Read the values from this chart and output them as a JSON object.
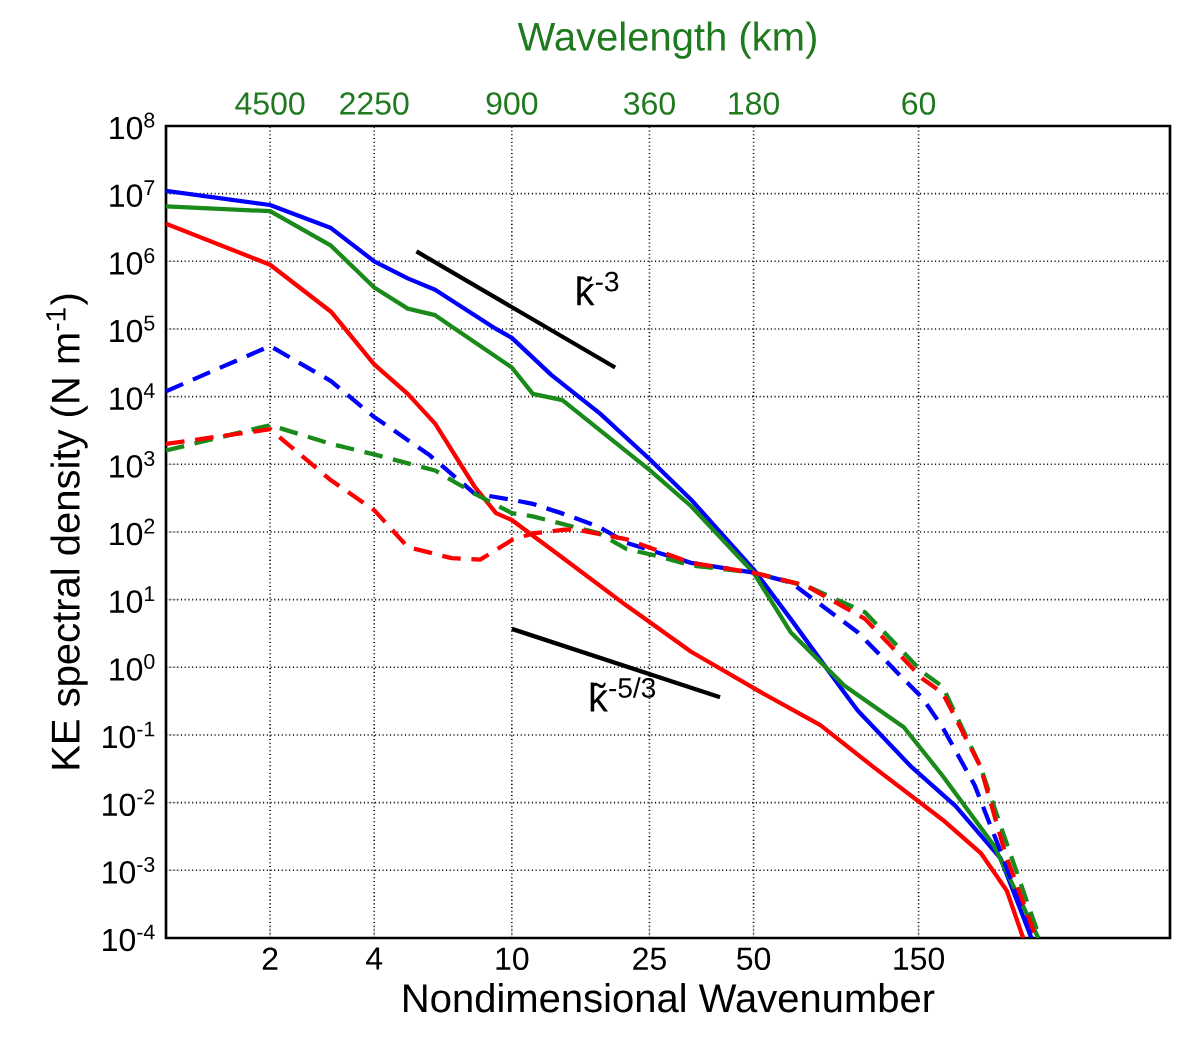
{
  "chart_data": {
    "type": "line",
    "xlabel": "Nondimensional Wavenumber",
    "ylabel": "KE spectral density (N m$^{-1}$)",
    "log": "xy",
    "grid": true,
    "marker": "none",
    "xlim": [
      1,
      800
    ],
    "xticks": [
      2,
      4,
      10,
      25,
      50,
      150
    ],
    "ylim": [
      0.0001,
      100000000
    ],
    "yticks": [
      {
        "value": 100000000,
        "label": "10$^{8}$"
      },
      {
        "value": 10000000,
        "label": "10$^{7}$"
      },
      {
        "value": 1000000,
        "label": "10$^{6}$"
      },
      {
        "value": 100000,
        "label": "10$^{5}$"
      },
      {
        "value": 10000,
        "label": "10$^{4}$"
      },
      {
        "value": 1000,
        "label": "10$^{3}$"
      },
      {
        "value": 100,
        "label": "10$^{2}$"
      },
      {
        "value": 10,
        "label": "10$^{1}$"
      },
      {
        "value": 1,
        "label": "10$^{0}$"
      },
      {
        "value": 0.1,
        "label": "10$^{-1}$"
      },
      {
        "value": 0.01,
        "label": "10$^{-2}$"
      },
      {
        "value": 0.001,
        "label": "10$^{-3}$"
      },
      {
        "value": 0.0001,
        "label": "10$^{-4}$"
      }
    ],
    "series": [
      {
        "color": "#0000ff",
        "line_style": "solid",
        "x": [
          1,
          2,
          3,
          4,
          5,
          6,
          9,
          10,
          13,
          18,
          25,
          33,
          50,
          64,
          91,
          100,
          142,
          192,
          259,
          318
        ],
        "values": [
          11000000,
          6800000,
          3100000,
          1000000,
          560000,
          380000,
          100000,
          74000,
          21000,
          5600,
          1200,
          300,
          28,
          5.2,
          0.44,
          0.23,
          0.035,
          0.0089,
          0.0015,
          0.0001
        ]
      },
      {
        "color": "#1a8a1a",
        "line_style": "solid",
        "x": [
          1,
          2,
          3,
          4,
          5,
          6,
          10,
          11.5,
          14,
          25,
          33,
          50,
          64,
          91,
          136,
          176,
          248,
          333
        ],
        "values": [
          6500000,
          5500000,
          1700000,
          410000,
          200000,
          160000,
          27000,
          11000,
          8900,
          830,
          240,
          25,
          3.3,
          0.55,
          0.13,
          0.025,
          0.0023,
          0.0001
        ]
      },
      {
        "color": "#ff0000",
        "line_style": "solid",
        "x": [
          1,
          2,
          3,
          4,
          5,
          6,
          7.8,
          9,
          10,
          13.5,
          21.5,
          33,
          52,
          78,
          110,
          176,
          227,
          270,
          301
        ],
        "values": [
          3600000,
          890000,
          180000,
          30000,
          11000,
          4000,
          470,
          190,
          150,
          48,
          8.1,
          1.7,
          0.44,
          0.14,
          0.035,
          0.0056,
          0.0018,
          0.0005,
          0.0001
        ]
      },
      {
        "color": "#0000ff",
        "line_style": "dashed",
        "x": [
          1,
          2,
          3,
          4,
          5.75,
          7.8,
          10,
          11.5,
          13.9,
          17.8,
          21.5,
          33,
          50,
          64,
          100,
          154,
          176,
          218,
          259,
          320
        ],
        "values": [
          12000,
          56000,
          17000,
          5000,
          1400,
          370,
          300,
          260,
          190,
          120,
          69,
          35,
          25,
          18,
          3.3,
          0.35,
          0.13,
          0.018,
          0.0019,
          0.0001
        ]
      },
      {
        "color": "#1a8a1a",
        "line_style": "dashed",
        "x": [
          1,
          2,
          3,
          4,
          6,
          7.8,
          10,
          11.5,
          17.8,
          21.5,
          26.4,
          33,
          50,
          71,
          105,
          154,
          176,
          226,
          267,
          336
        ],
        "values": [
          1600,
          3800,
          2000,
          1400,
          810,
          370,
          190,
          170,
          96,
          56,
          44,
          32,
          25,
          16,
          6.5,
          0.85,
          0.52,
          0.035,
          0.0029,
          0.0001
        ]
      },
      {
        "color": "#ff0000",
        "line_style": "dashed",
        "x": [
          1,
          2,
          3,
          4,
          5,
          6.7,
          8.1,
          10,
          11.5,
          13.9,
          15.1,
          21.5,
          33,
          50,
          71,
          105,
          154,
          176,
          226,
          267,
          328
        ],
        "values": [
          2000,
          3300,
          580,
          210,
          60,
          41,
          39,
          76,
          95,
          107,
          110,
          78,
          35,
          25,
          16,
          5.2,
          0.68,
          0.42,
          0.035,
          0.0018,
          0.0001
        ]
      },
      {
        "color": "#000000",
        "line_style": "solid",
        "x": [
          5.3,
          19.9
        ],
        "values": [
          1400000,
          27000
        ]
      },
      {
        "color": "#000000",
        "line_style": "solid",
        "x": [
          10,
          40
        ],
        "values": [
          3.7,
          0.36
        ]
      }
    ],
    "annotations": [
      "k̃$^{-3}$",
      "k̃$^{-5/3}$",
      "Wavelength (km)",
      "4500",
      "2250",
      "900",
      "360",
      "180",
      "60"
    ]
  }
}
